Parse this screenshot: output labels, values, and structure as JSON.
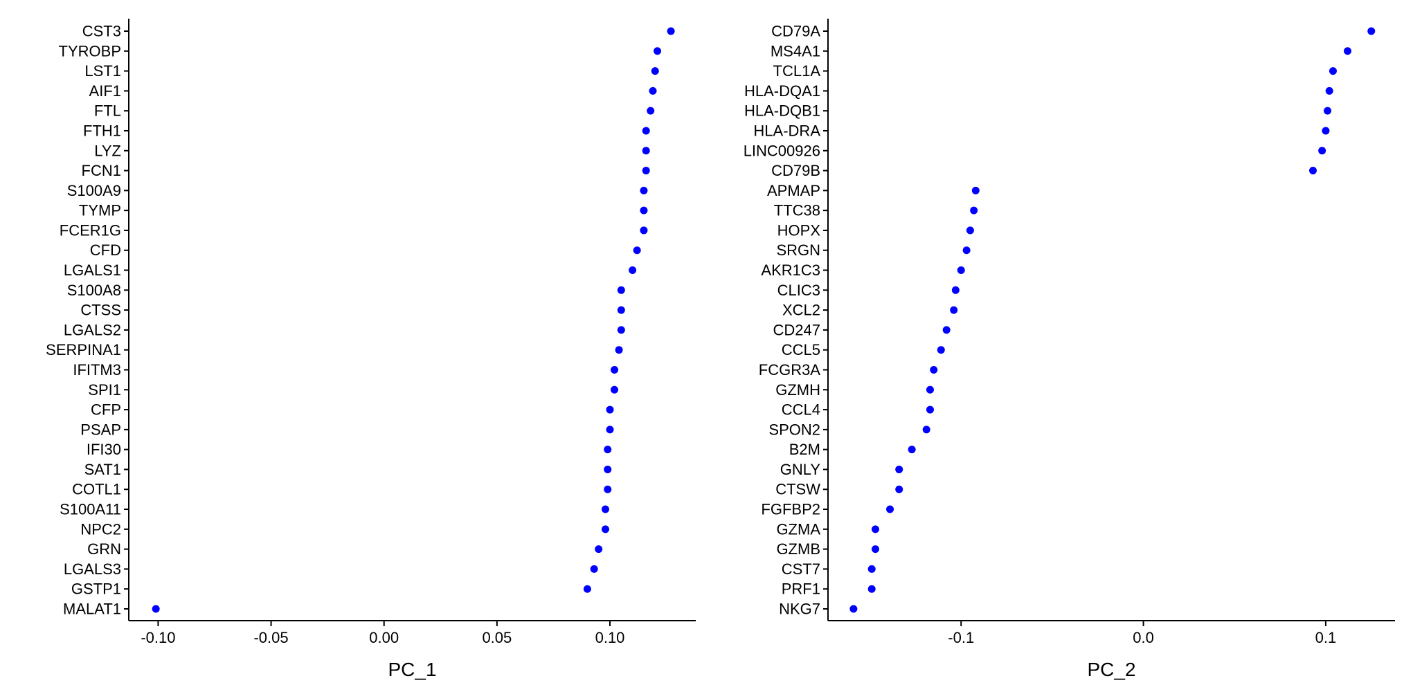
{
  "chart_data": [
    {
      "type": "scatter",
      "xlabel": "PC_1",
      "xticks": [
        "-0.10",
        "-0.05",
        "0.00",
        "0.05",
        "0.10"
      ],
      "xlim": [
        -0.113,
        0.138
      ],
      "point_color": "#0000FF",
      "genes": [
        "CST3",
        "TYROBP",
        "LST1",
        "AIF1",
        "FTL",
        "FTH1",
        "LYZ",
        "FCN1",
        "S100A9",
        "TYMP",
        "FCER1G",
        "CFD",
        "LGALS1",
        "S100A8",
        "CTSS",
        "LGALS2",
        "SERPINA1",
        "IFITM3",
        "SPI1",
        "CFP",
        "PSAP",
        "IFI30",
        "SAT1",
        "COTL1",
        "S100A11",
        "NPC2",
        "GRN",
        "LGALS3",
        "GSTP1",
        "MALAT1"
      ],
      "values": [
        0.127,
        0.121,
        0.12,
        0.119,
        0.118,
        0.116,
        0.116,
        0.116,
        0.115,
        0.115,
        0.115,
        0.112,
        0.11,
        0.105,
        0.105,
        0.105,
        0.104,
        0.102,
        0.102,
        0.1,
        0.1,
        0.099,
        0.099,
        0.099,
        0.098,
        0.098,
        0.095,
        0.093,
        0.09,
        -0.101
      ]
    },
    {
      "type": "scatter",
      "xlabel": "PC_2",
      "xticks": [
        "-0.1",
        "0.0",
        "0.1"
      ],
      "xlim": [
        -0.173,
        0.138
      ],
      "point_color": "#0000FF",
      "genes": [
        "CD79A",
        "MS4A1",
        "TCL1A",
        "HLA-DQA1",
        "HLA-DQB1",
        "HLA-DRA",
        "LINC00926",
        "CD79B",
        "APMAP",
        "TTC38",
        "HOPX",
        "SRGN",
        "AKR1C3",
        "CLIC3",
        "XCL2",
        "CD247",
        "CCL5",
        "FCGR3A",
        "GZMH",
        "CCL4",
        "SPON2",
        "B2M",
        "GNLY",
        "CTSW",
        "FGFBP2",
        "GZMA",
        "GZMB",
        "CST7",
        "PRF1",
        "NKG7"
      ],
      "values": [
        0.125,
        0.112,
        0.104,
        0.102,
        0.101,
        0.1,
        0.098,
        0.093,
        -0.092,
        -0.093,
        -0.095,
        -0.097,
        -0.1,
        -0.103,
        -0.104,
        -0.108,
        -0.111,
        -0.115,
        -0.117,
        -0.117,
        -0.119,
        -0.127,
        -0.134,
        -0.134,
        -0.139,
        -0.147,
        -0.147,
        -0.149,
        -0.149,
        -0.159
      ]
    }
  ]
}
